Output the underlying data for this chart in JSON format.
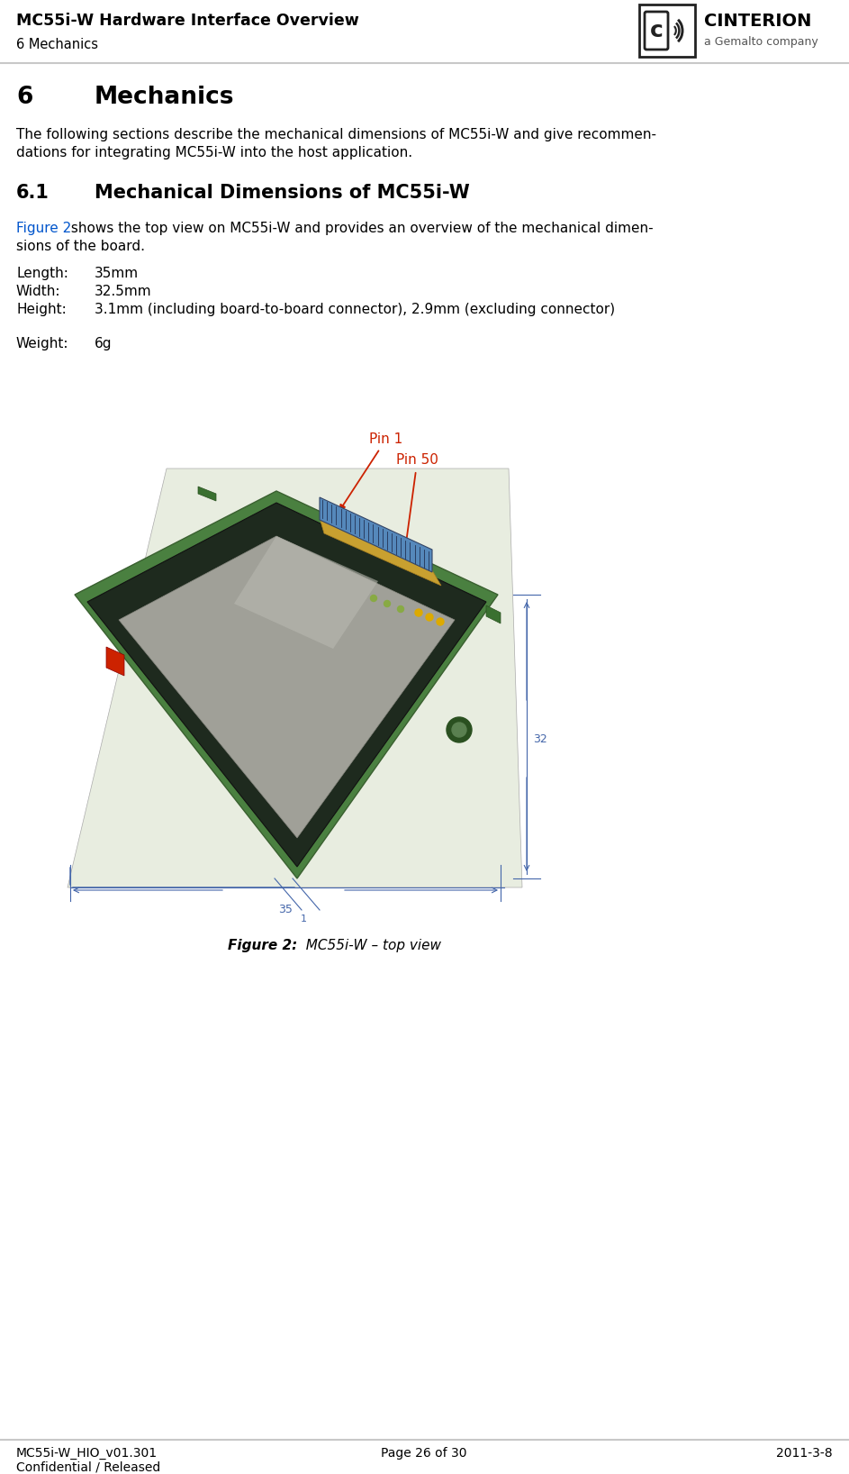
{
  "page_title": "MC55i-W Hardware Interface Overview",
  "page_subtitle": "6 Mechanics",
  "header_line_color": "#c8c8c8",
  "footer_line_color": "#c8c8c8",
  "background_color": "#ffffff",
  "text_color": "#000000",
  "link_color": "#0055cc",
  "red_color": "#cc2200",
  "section_num": "6",
  "section_name": "Mechanics",
  "section_intro_line1": "The following sections describe the mechanical dimensions of MC55i-W and give recommen-",
  "section_intro_line2": "dations for integrating MC55i-W into the host application.",
  "subsec_num": "6.1",
  "subsec_name": "Mechanical Dimensions of MC55i-W",
  "figure_ref": "Figure 2",
  "figure_ref_rest_line1": " shows the top view on MC55i-W and provides an overview of the mechanical dimen-",
  "figure_ref_rest_line2": "sions of the board.",
  "spec_label_length": "Length:",
  "spec_value_length": "35mm",
  "spec_label_width": "Width:",
  "spec_value_width": "32.5mm",
  "spec_label_height": "Height:",
  "spec_value_height": "3.1mm (including board-to-board connector), 2.9mm (excluding connector)",
  "spec_label_weight": "Weight:",
  "spec_value_weight": "6g",
  "pin1_label": "Pin 1",
  "pin50_label": "Pin 50",
  "figure_caption_bold": "Figure 2:",
  "figure_caption_normal": "  MC55i-W – top view",
  "footer_left1": "MC55i-W_HIO_v01.301",
  "footer_left2": "Confidential / Released",
  "footer_center": "Page 26 of 30",
  "footer_right": "2011-3-8",
  "logo_text": "CINTERION",
  "logo_subtext": "a Gemalto company",
  "pcb_green": "#4a8c3f",
  "pcb_dark": "#2a5c2a",
  "chip_color": "#888880",
  "chip_frame": "#1a1a2a",
  "dim_line_color": "#4466aa",
  "connector_blue": "#5588cc",
  "connector_gold": "#c8a030"
}
